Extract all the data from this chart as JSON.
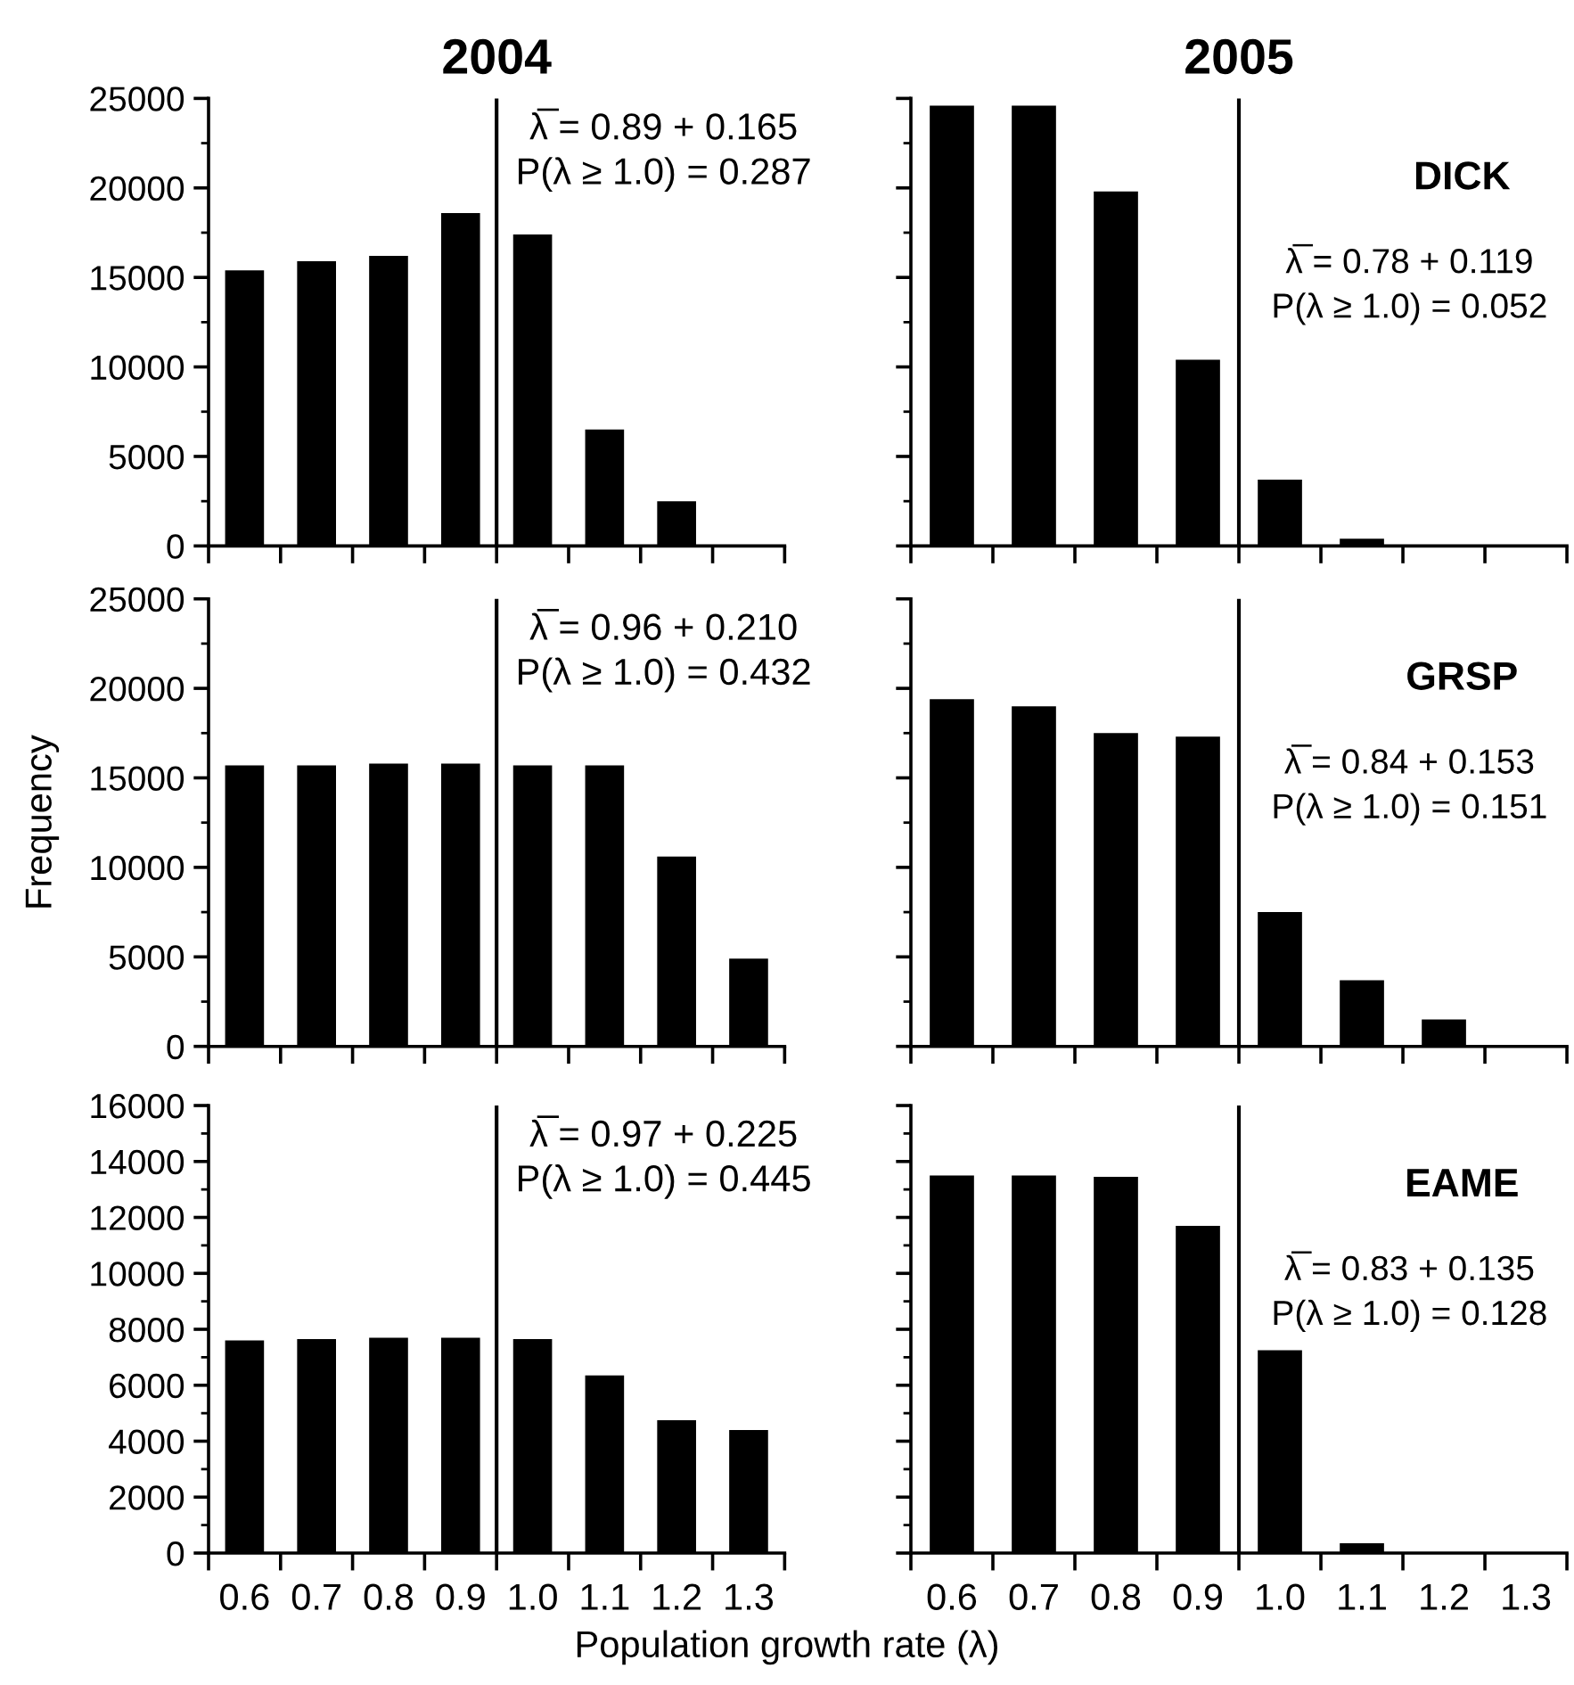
{
  "chart_data": [
    {
      "type": "histogram",
      "title": "2004",
      "bins": [
        0.55,
        0.65,
        0.75,
        0.85,
        0.95,
        1.05,
        1.15,
        1.25,
        1.35
      ],
      "values": [
        15400,
        15900,
        16200,
        18600,
        17400,
        6500,
        2500,
        0
      ],
      "color": "#000000",
      "xlim": [
        0.55,
        1.35
      ],
      "ylim": [
        0,
        25000
      ],
      "xticks": [
        {
          "value": 0.55,
          "label": null
        },
        {
          "value": 0.65,
          "label": null
        },
        {
          "value": 0.75,
          "label": null
        },
        {
          "value": 0.85,
          "label": null
        },
        {
          "value": 0.95,
          "label": null
        },
        {
          "value": 1.05,
          "label": null
        },
        {
          "value": 1.15,
          "label": null
        },
        {
          "value": 1.25,
          "label": null
        },
        {
          "value": 1.35,
          "label": null
        }
      ],
      "yticks": [
        0,
        {
          "value": 2500,
          "label": null
        },
        5000,
        {
          "value": 7500,
          "label": null
        },
        10000,
        {
          "value": 12500,
          "label": null
        },
        15000,
        {
          "value": 17500,
          "label": null
        },
        20000,
        {
          "value": 22500,
          "label": null
        },
        25000
      ],
      "ref_lines": [
        {
          "axis": "x",
          "value": 0.95,
          "color": "#000000"
        }
      ],
      "annotations": [
        "λ̅ = 0.89 + 0.165",
        "P(λ ≥ 1.0) = 0.287"
      ],
      "tick_labels": "y",
      "grid": false
    },
    {
      "type": "histogram",
      "title": "2005",
      "bins": [
        0.55,
        0.65,
        0.75,
        0.85,
        0.95,
        1.05,
        1.15,
        1.25,
        1.35
      ],
      "values": [
        24600,
        24600,
        19800,
        10400,
        3700,
        400,
        0,
        0
      ],
      "color": "#000000",
      "xlim": [
        0.55,
        1.35
      ],
      "ylim": [
        0,
        25000
      ],
      "xticks": [
        {
          "value": 0.55,
          "label": null
        },
        {
          "value": 0.65,
          "label": null
        },
        {
          "value": 0.75,
          "label": null
        },
        {
          "value": 0.85,
          "label": null
        },
        {
          "value": 0.95,
          "label": null
        },
        {
          "value": 1.05,
          "label": null
        },
        {
          "value": 1.15,
          "label": null
        },
        {
          "value": 1.25,
          "label": null
        },
        {
          "value": 1.35,
          "label": null
        }
      ],
      "yticks": [
        0,
        {
          "value": 2500,
          "label": null
        },
        5000,
        {
          "value": 7500,
          "label": null
        },
        10000,
        {
          "value": 12500,
          "label": null
        },
        15000,
        {
          "value": 17500,
          "label": null
        },
        20000,
        {
          "value": 22500,
          "label": null
        },
        25000
      ],
      "ref_lines": [
        {
          "axis": "x",
          "value": 0.95,
          "color": "#000000"
        }
      ],
      "annotations": [
        "DICK",
        "λ̅ = 0.78 + 0.119",
        "P(λ ≥ 1.0) = 0.052"
      ],
      "tick_labels": false,
      "grid": false
    },
    {
      "type": "histogram",
      "ylabel": "Frequency",
      "bins": [
        0.55,
        0.65,
        0.75,
        0.85,
        0.95,
        1.05,
        1.15,
        1.25,
        1.35
      ],
      "values": [
        15700,
        15700,
        15800,
        15800,
        15700,
        15700,
        10600,
        4900
      ],
      "color": "#000000",
      "xlim": [
        0.55,
        1.35
      ],
      "ylim": [
        0,
        25000
      ],
      "xticks": [
        {
          "value": 0.55,
          "label": null
        },
        {
          "value": 0.65,
          "label": null
        },
        {
          "value": 0.75,
          "label": null
        },
        {
          "value": 0.85,
          "label": null
        },
        {
          "value": 0.95,
          "label": null
        },
        {
          "value": 1.05,
          "label": null
        },
        {
          "value": 1.15,
          "label": null
        },
        {
          "value": 1.25,
          "label": null
        },
        {
          "value": 1.35,
          "label": null
        }
      ],
      "yticks": [
        0,
        {
          "value": 2500,
          "label": null
        },
        5000,
        {
          "value": 7500,
          "label": null
        },
        10000,
        {
          "value": 12500,
          "label": null
        },
        15000,
        {
          "value": 17500,
          "label": null
        },
        20000,
        {
          "value": 22500,
          "label": null
        },
        25000
      ],
      "ref_lines": [
        {
          "axis": "x",
          "value": 0.95,
          "color": "#000000"
        }
      ],
      "annotations": [
        "λ̅ = 0.96 + 0.210",
        "P(λ ≥ 1.0) = 0.432"
      ],
      "tick_labels": "y",
      "grid": false
    },
    {
      "type": "histogram",
      "bins": [
        0.55,
        0.65,
        0.75,
        0.85,
        0.95,
        1.05,
        1.15,
        1.25,
        1.35
      ],
      "values": [
        19400,
        19000,
        17500,
        17300,
        7500,
        3700,
        1500,
        0
      ],
      "color": "#000000",
      "xlim": [
        0.55,
        1.35
      ],
      "ylim": [
        0,
        25000
      ],
      "xticks": [
        {
          "value": 0.55,
          "label": null
        },
        {
          "value": 0.65,
          "label": null
        },
        {
          "value": 0.75,
          "label": null
        },
        {
          "value": 0.85,
          "label": null
        },
        {
          "value": 0.95,
          "label": null
        },
        {
          "value": 1.05,
          "label": null
        },
        {
          "value": 1.15,
          "label": null
        },
        {
          "value": 1.25,
          "label": null
        },
        {
          "value": 1.35,
          "label": null
        }
      ],
      "yticks": [
        0,
        {
          "value": 2500,
          "label": null
        },
        5000,
        {
          "value": 7500,
          "label": null
        },
        10000,
        {
          "value": 12500,
          "label": null
        },
        15000,
        {
          "value": 17500,
          "label": null
        },
        20000,
        {
          "value": 22500,
          "label": null
        },
        25000
      ],
      "ref_lines": [
        {
          "axis": "x",
          "value": 0.95,
          "color": "#000000"
        }
      ],
      "annotations": [
        "GRSP",
        "λ̅ = 0.84 + 0.153",
        "P(λ ≥ 1.0) = 0.151"
      ],
      "tick_labels": false,
      "grid": false
    },
    {
      "type": "histogram",
      "xlabel": "Population growth rate (λ)",
      "bins": [
        0.55,
        0.65,
        0.75,
        0.85,
        0.95,
        1.05,
        1.15,
        1.25,
        1.35
      ],
      "values": [
        7600,
        7650,
        7700,
        7700,
        7650,
        6350,
        4750,
        4400
      ],
      "color": "#000000",
      "xlim": [
        0.55,
        1.35
      ],
      "ylim": [
        0,
        16000
      ],
      "xticks": [
        {
          "value": 0.55,
          "label": null
        },
        {
          "value": 0.6,
          "label": "0.6"
        },
        {
          "value": 0.65,
          "label": null
        },
        {
          "value": 0.7,
          "label": "0.7"
        },
        {
          "value": 0.75,
          "label": null
        },
        {
          "value": 0.8,
          "label": "0.8"
        },
        {
          "value": 0.85,
          "label": null
        },
        {
          "value": 0.9,
          "label": "0.9"
        },
        {
          "value": 0.95,
          "label": null
        },
        {
          "value": 1.0,
          "label": "1.0"
        },
        {
          "value": 1.05,
          "label": null
        },
        {
          "value": 1.1,
          "label": "1.1"
        },
        {
          "value": 1.15,
          "label": null
        },
        {
          "value": 1.2,
          "label": "1.2"
        },
        {
          "value": 1.25,
          "label": null
        },
        {
          "value": 1.3,
          "label": "1.3"
        },
        {
          "value": 1.35,
          "label": null
        }
      ],
      "yticks": [
        0,
        {
          "value": 1000,
          "label": null
        },
        2000,
        {
          "value": 3000,
          "label": null
        },
        4000,
        {
          "value": 5000,
          "label": null
        },
        6000,
        {
          "value": 7000,
          "label": null
        },
        8000,
        {
          "value": 9000,
          "label": null
        },
        10000,
        {
          "value": 11000,
          "label": null
        },
        12000,
        {
          "value": 13000,
          "label": null
        },
        14000,
        {
          "value": 15000,
          "label": null
        },
        16000
      ],
      "ref_lines": [
        {
          "axis": "x",
          "value": 0.95,
          "color": "#000000"
        }
      ],
      "annotations": [
        "λ̅ = 0.97 + 0.225",
        "P(λ ≥ 1.0) = 0.445"
      ],
      "grid": false
    },
    {
      "type": "histogram",
      "bins": [
        0.55,
        0.65,
        0.75,
        0.85,
        0.95,
        1.05,
        1.15,
        1.25,
        1.35
      ],
      "values": [
        13500,
        13500,
        13450,
        11700,
        7250,
        350,
        0,
        0
      ],
      "color": "#000000",
      "xlim": [
        0.55,
        1.35
      ],
      "ylim": [
        0,
        16000
      ],
      "xticks": [
        {
          "value": 0.55,
          "label": null
        },
        {
          "value": 0.6,
          "label": "0.6"
        },
        {
          "value": 0.65,
          "label": null
        },
        {
          "value": 0.7,
          "label": "0.7"
        },
        {
          "value": 0.75,
          "label": null
        },
        {
          "value": 0.8,
          "label": "0.8"
        },
        {
          "value": 0.85,
          "label": null
        },
        {
          "value": 0.9,
          "label": "0.9"
        },
        {
          "value": 0.95,
          "label": null
        },
        {
          "value": 1.0,
          "label": "1.0"
        },
        {
          "value": 1.05,
          "label": null
        },
        {
          "value": 1.1,
          "label": "1.1"
        },
        {
          "value": 1.15,
          "label": null
        },
        {
          "value": 1.2,
          "label": "1.2"
        },
        {
          "value": 1.25,
          "label": null
        },
        {
          "value": 1.3,
          "label": "1.3"
        },
        {
          "value": 1.35,
          "label": null
        }
      ],
      "yticks": [
        0,
        {
          "value": 1000,
          "label": null
        },
        2000,
        {
          "value": 3000,
          "label": null
        },
        4000,
        {
          "value": 5000,
          "label": null
        },
        6000,
        {
          "value": 7000,
          "label": null
        },
        8000,
        {
          "value": 9000,
          "label": null
        },
        10000,
        {
          "value": 11000,
          "label": null
        },
        12000,
        {
          "value": 13000,
          "label": null
        },
        14000,
        {
          "value": 15000,
          "label": null
        },
        16000
      ],
      "ref_lines": [
        {
          "axis": "x",
          "value": 0.95,
          "color": "#000000"
        }
      ],
      "annotations": [
        "EAME",
        "λ̅ = 0.83 + 0.135",
        "P(λ ≥ 1.0) = 0.128"
      ],
      "tick_labels": "x",
      "grid": false
    }
  ]
}
